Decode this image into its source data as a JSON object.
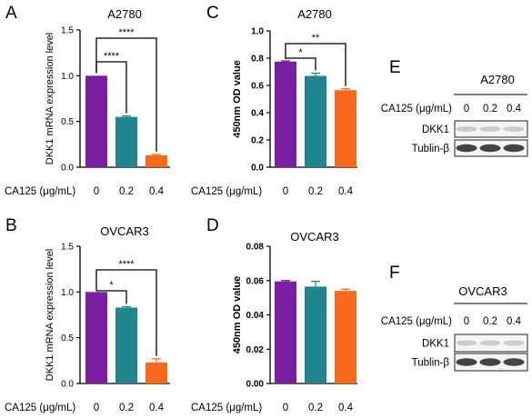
{
  "colors": {
    "dose_0": "#7b1fa2",
    "dose_0_2": "#21858f",
    "dose_0_4": "#fa6a1e",
    "axis": "#000000",
    "blot_band": "#3a3a3a",
    "blot_bg": "#f4f4f4"
  },
  "panels": [
    {
      "letter": "A",
      "title": "A2780",
      "ylabel": "DKK1 mRNA expression level",
      "xlabel_prefix": "CA125 (μg/mL)",
      "ticks": [
        "0.0",
        "0.5",
        "1.0",
        "1.5"
      ],
      "sig": [
        "****",
        "****"
      ]
    },
    {
      "letter": "C",
      "title": "A2780",
      "ylabel": "450nm OD value",
      "xlabel_prefix": "CA125 (μg/mL)",
      "ticks": [
        "0.0",
        "0.2",
        "0.4",
        "0.6",
        "0.8",
        "1.0"
      ],
      "sig": [
        "*",
        "**"
      ]
    },
    {
      "letter": "B",
      "title": "OVCAR3",
      "ylabel": "DKK1 mRNA expression level",
      "xlabel_prefix": "CA125 (μg/mL)",
      "ticks": [
        "0.0",
        "0.5",
        "1.0",
        "1.5"
      ],
      "sig": [
        "*",
        "****"
      ]
    },
    {
      "letter": "D",
      "title": "OVCAR3",
      "ylabel": "450nm OD value",
      "xlabel_prefix": "CA125 (μg/mL)",
      "ticks": [
        "0.00",
        "0.02",
        "0.04",
        "0.06",
        "0.08"
      ],
      "sig": []
    }
  ],
  "chart_data": [
    {
      "type": "bar",
      "title": "A2780",
      "ylabel": "DKK1 mRNA expression level",
      "xlabel": "CA125 (μg/mL)",
      "categories": [
        "0",
        "0.2",
        "0.4"
      ],
      "values": [
        1.0,
        0.55,
        0.13
      ],
      "errors": [
        0.0,
        0.01,
        0.01
      ],
      "ylim": [
        0,
        1.5
      ],
      "significance": [
        {
          "from": "0",
          "to": "0.2",
          "label": "****"
        },
        {
          "from": "0",
          "to": "0.4",
          "label": "****"
        }
      ]
    },
    {
      "type": "bar",
      "title": "A2780",
      "ylabel": "450nm OD value",
      "xlabel": "CA125 (μg/mL)",
      "categories": [
        "0",
        "0.2",
        "0.4"
      ],
      "values": [
        0.775,
        0.67,
        0.565
      ],
      "errors": [
        0.005,
        0.02,
        0.01
      ],
      "ylim": [
        0,
        1.0
      ],
      "significance": [
        {
          "from": "0",
          "to": "0.2",
          "label": "*"
        },
        {
          "from": "0",
          "to": "0.4",
          "label": "**"
        }
      ]
    },
    {
      "type": "bar",
      "title": "OVCAR3",
      "ylabel": "DKK1 mRNA expression level",
      "xlabel": "CA125 (μg/mL)",
      "categories": [
        "0",
        "0.2",
        "0.4"
      ],
      "values": [
        1.0,
        0.83,
        0.23
      ],
      "errors": [
        0.0,
        0.01,
        0.04
      ],
      "ylim": [
        0,
        1.5
      ],
      "significance": [
        {
          "from": "0",
          "to": "0.2",
          "label": "*"
        },
        {
          "from": "0",
          "to": "0.4",
          "label": "****"
        }
      ]
    },
    {
      "type": "bar",
      "title": "OVCAR3",
      "ylabel": "450nm OD value",
      "xlabel": "CA125 (μg/mL)",
      "categories": [
        "0",
        "0.2",
        "0.4"
      ],
      "values": [
        0.0595,
        0.0565,
        0.054
      ],
      "errors": [
        0.0005,
        0.003,
        0.001
      ],
      "ylim": [
        0,
        0.08
      ],
      "significance": []
    }
  ],
  "blots": [
    {
      "letter": "E",
      "title": "A2780",
      "condition_label": "CA125 (μg/mL)",
      "lanes": [
        "0",
        "0.2",
        "0.4"
      ],
      "rows": [
        "DKK1",
        "Tublin-β"
      ]
    },
    {
      "letter": "F",
      "title": "OVCAR3",
      "condition_label": "CA125 (μg/mL)",
      "lanes": [
        "0",
        "0.2",
        "0.4"
      ],
      "rows": [
        "DKK1",
        "Tublin-β"
      ]
    }
  ]
}
